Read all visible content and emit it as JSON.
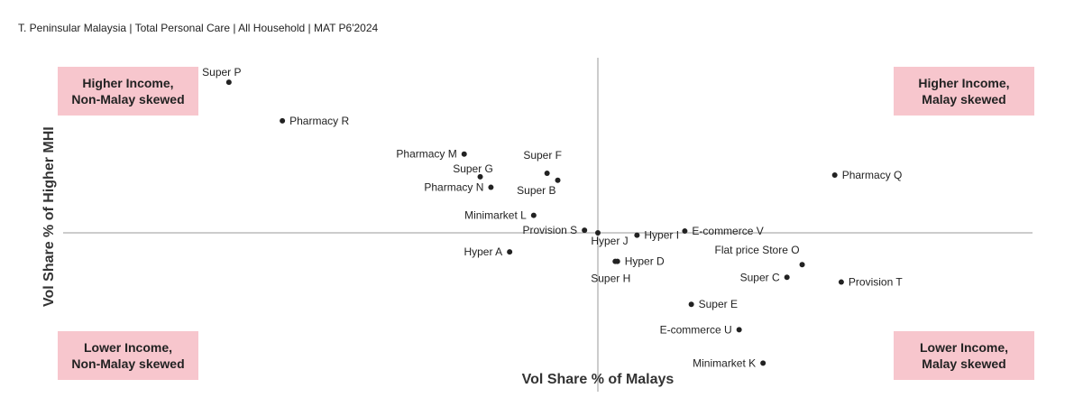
{
  "header": {
    "subtitle": "T. Peninsular Malaysia | Total Personal Care | All Household | MAT P6'2024"
  },
  "quadrants": {
    "top_left": {
      "line1": "Higher Income,",
      "line2": "Non-Malay skewed"
    },
    "top_right": {
      "line1": "Higher Income,",
      "line2": "Malay skewed"
    },
    "bottom_left": {
      "line1": "Lower Income,",
      "line2": "Non-Malay skewed"
    },
    "bottom_right": {
      "line1": "Lower Income,",
      "line2": "Malay skewed"
    }
  },
  "colors": {
    "quadrant_fill": "#f7c6cd",
    "point": "#222222",
    "axis": "#999999"
  },
  "chart_data": {
    "type": "scatter",
    "xlabel": "Vol Share % of Malays",
    "ylabel": "Vol Share % of Higher MHI",
    "xlim": [
      -1.0,
      1.0
    ],
    "ylim": [
      -1.0,
      1.0
    ],
    "grid": false,
    "points": [
      {
        "label": "Super P",
        "x": -0.69,
        "y": 0.86,
        "label_pos": "above"
      },
      {
        "label": "Pharmacy R",
        "x": -0.59,
        "y": 0.64,
        "label_pos": "right"
      },
      {
        "label": "Pharmacy M",
        "x": -0.25,
        "y": 0.45,
        "label_pos": "left"
      },
      {
        "label": "Super F",
        "x": -0.095,
        "y": 0.34,
        "label_pos": "above"
      },
      {
        "label": "Super G",
        "x": -0.22,
        "y": 0.32,
        "label_pos": "above"
      },
      {
        "label": "Super B",
        "x": -0.075,
        "y": 0.3,
        "label_pos": "below-left"
      },
      {
        "label": "Pharmacy N",
        "x": -0.2,
        "y": 0.26,
        "label_pos": "left"
      },
      {
        "label": "Pharmacy Q",
        "x": 0.545,
        "y": 0.33,
        "label_pos": "right"
      },
      {
        "label": "Minimarket L",
        "x": -0.12,
        "y": 0.1,
        "label_pos": "left"
      },
      {
        "label": "Provision S",
        "x": -0.025,
        "y": 0.015,
        "label_pos": "left"
      },
      {
        "label": "Hyper J",
        "x": 0.0,
        "y": 0.0,
        "label_pos": "below"
      },
      {
        "label": "Hyper I",
        "x": 0.09,
        "y": -0.015,
        "label_pos": "right"
      },
      {
        "label": "E-commerce V",
        "x": 0.2,
        "y": 0.01,
        "label_pos": "right"
      },
      {
        "label": "Hyper A",
        "x": -0.165,
        "y": -0.12,
        "label_pos": "left"
      },
      {
        "label": "Hyper D",
        "x": 0.045,
        "y": -0.18,
        "label_pos": "right"
      },
      {
        "label": "Super H",
        "x": 0.04,
        "y": -0.18,
        "label_pos": "below"
      },
      {
        "label": "Flat price Store O",
        "x": 0.47,
        "y": -0.2,
        "label_pos": "above"
      },
      {
        "label": "Super C",
        "x": 0.435,
        "y": -0.28,
        "label_pos": "left"
      },
      {
        "label": "Provision T",
        "x": 0.56,
        "y": -0.31,
        "label_pos": "right"
      },
      {
        "label": "Super E",
        "x": 0.215,
        "y": -0.45,
        "label_pos": "right"
      },
      {
        "label": "E-commerce U",
        "x": 0.325,
        "y": -0.61,
        "label_pos": "left"
      },
      {
        "label": "Minimarket K",
        "x": 0.38,
        "y": -0.82,
        "label_pos": "left"
      }
    ]
  }
}
